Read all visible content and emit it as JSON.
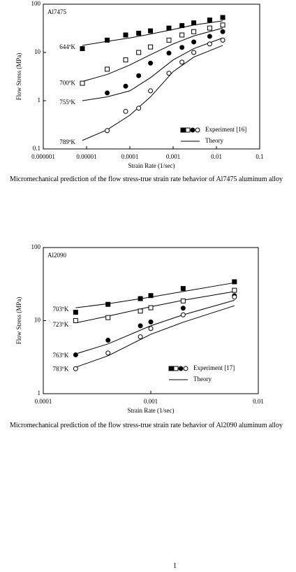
{
  "chart_data": [
    {
      "type": "scatter",
      "label": "Al7475",
      "x_label": "Strain Rate (1/sec)",
      "y_label": "Flow Stress (MPa)",
      "xlog": true,
      "ylog": true,
      "xlim": [
        1e-06,
        0.1
      ],
      "ylim": [
        0.1,
        100
      ],
      "xticks": [
        1e-06,
        1e-05,
        0.0001,
        0.001,
        0.01,
        0.1
      ],
      "yticks": [
        0.1,
        1,
        10,
        100
      ],
      "legend": [
        "Experiment [16]",
        "Theory"
      ],
      "x": [
        8e-06,
        3e-05,
        8e-05,
        0.00016,
        0.0003,
        0.0008,
        0.0016,
        0.003,
        0.007,
        0.014
      ],
      "theory_x": [
        8e-06,
        3e-05,
        0.0001,
        0.0003,
        0.001,
        0.003,
        0.014
      ],
      "series": [
        {
          "name": "644ºK",
          "marker": "square",
          "filled": true,
          "color": "#000000",
          "values": [
            12,
            18,
            23,
            25,
            28,
            32,
            36,
            41,
            47,
            53
          ],
          "theory": [
            14,
            17,
            20,
            24,
            30,
            37,
            45
          ]
        },
        {
          "name": "700ºK",
          "marker": "square",
          "filled": false,
          "color": "#000000",
          "values": [
            2.3,
            4.5,
            7,
            10,
            13,
            18,
            23,
            27,
            32,
            37
          ],
          "theory": [
            2.5,
            3.5,
            5.5,
            9,
            15,
            22,
            32
          ]
        },
        {
          "name": "755ºK",
          "marker": "circle",
          "filled": true,
          "color": "#000000",
          "values": [
            null,
            1.45,
            2,
            3.3,
            6,
            9.7,
            12.7,
            16.5,
            21.5,
            27
          ],
          "theory": [
            1,
            1.2,
            1.6,
            3,
            7,
            12,
            20
          ]
        },
        {
          "name": "789ºK",
          "marker": "circle",
          "filled": false,
          "color": "#000000",
          "values": [
            null,
            0.24,
            0.6,
            0.7,
            1.6,
            3.7,
            6.3,
            10,
            15,
            18
          ],
          "theory": [
            0.15,
            0.25,
            0.5,
            1.2,
            4,
            8,
            14
          ]
        }
      ],
      "caption": "Micromechanical prediction of the flow stress-true strain rate behavior of Al7475 aluminum alloy"
    },
    {
      "type": "scatter",
      "label": "Al2090",
      "x_label": "Strain Rate (1/sec)",
      "y_label": "Flow Stress (MPa)",
      "xlog": true,
      "ylog": true,
      "xlim": [
        0.0001,
        0.01
      ],
      "ylim": [
        1,
        100
      ],
      "xticks": [
        0.0001,
        0.001,
        0.01
      ],
      "yticks": [
        1,
        10,
        100
      ],
      "legend": [
        "Experiment [17]",
        "Theory"
      ],
      "x": [
        0.0002,
        0.0004,
        0.0008,
        0.001,
        0.002,
        0.006
      ],
      "theory_x": [
        0.0002,
        0.0004,
        0.001,
        0.002,
        0.006
      ],
      "series": [
        {
          "name": "703ºK",
          "marker": "square",
          "filled": true,
          "color": "#000000",
          "values": [
            13,
            16.7,
            20,
            22,
            27.5,
            34
          ],
          "theory": [
            15,
            17,
            21,
            25,
            33
          ]
        },
        {
          "name": "723ºK",
          "marker": "square",
          "filled": false,
          "color": "#000000",
          "values": [
            10,
            11,
            13.5,
            15,
            18.6,
            26
          ],
          "theory": [
            9.3,
            11.5,
            15.5,
            19,
            25
          ]
        },
        {
          "name": "763ºK",
          "marker": "circle",
          "filled": true,
          "color": "#000000",
          "values": [
            3.4,
            5.4,
            8.5,
            9.6,
            14.8,
            22
          ],
          "theory": [
            3.5,
            4.8,
            8.5,
            12,
            19
          ]
        },
        {
          "name": "783ºK",
          "marker": "circle",
          "filled": false,
          "color": "#000000",
          "values": [
            2.2,
            3.6,
            6,
            7.8,
            12,
            21
          ],
          "theory": [
            2.3,
            3.3,
            6.5,
            9.5,
            16
          ]
        }
      ],
      "caption": "Micromechanical prediction of the flow stress-true strain rate behavior of Al2090 aluminum alloy"
    }
  ],
  "page_number": "1"
}
